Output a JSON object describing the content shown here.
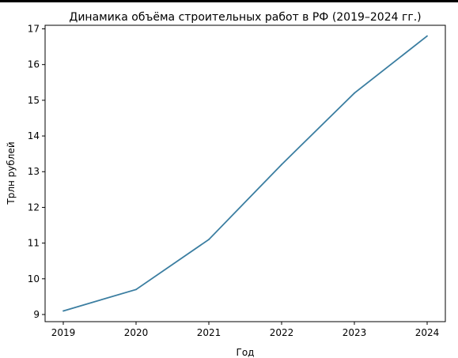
{
  "chart_data": {
    "type": "line",
    "title": "Динамика объёма строительных работ в РФ (2019–2024 гг.)",
    "xlabel": "Год",
    "ylabel": "Трлн рублей",
    "x": [
      2019,
      2020,
      2021,
      2022,
      2023,
      2024
    ],
    "x_ticks": [
      "2019",
      "2020",
      "2021",
      "2022",
      "2023",
      "2024"
    ],
    "y_ticks": [
      "9",
      "10",
      "11",
      "12",
      "13",
      "14",
      "15",
      "16",
      "17"
    ],
    "series": [
      {
        "values": [
          9.1,
          9.7,
          11.1,
          13.2,
          15.2,
          16.8
        ]
      }
    ],
    "ylim": [
      8.8,
      17.1
    ],
    "xlim": [
      2018.75,
      2024.25
    ],
    "grid": false,
    "line_color": "#3b7ea1"
  }
}
